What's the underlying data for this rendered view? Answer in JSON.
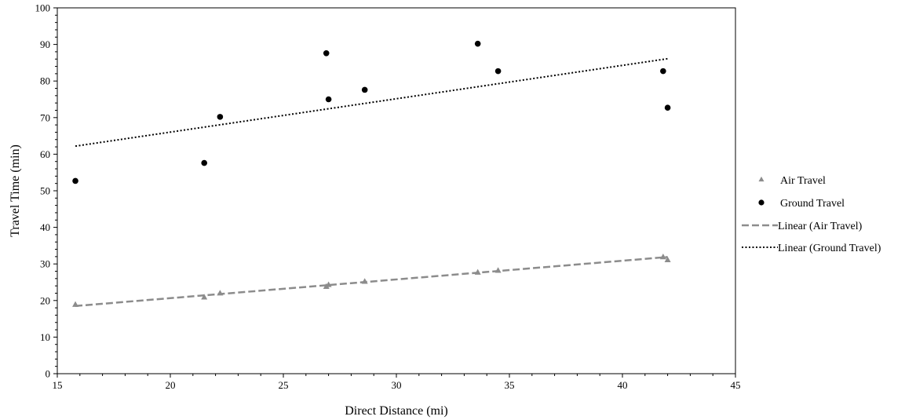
{
  "chart_data": {
    "type": "scatter",
    "title": "",
    "xlabel": "Direct Distance (mi)",
    "ylabel": "Travel Time (min)",
    "xlim": [
      15,
      45
    ],
    "ylim": [
      0,
      100
    ],
    "xticks": [
      15,
      20,
      25,
      30,
      35,
      40,
      45
    ],
    "yticks": [
      0,
      10,
      20,
      30,
      40,
      50,
      60,
      70,
      80,
      90,
      100
    ],
    "grid": false,
    "legend_position": "right",
    "series": [
      {
        "name": "Air Travel",
        "marker": "triangle",
        "color": "#8c8c8c",
        "x": [
          15.8,
          21.5,
          22.2,
          26.9,
          27.0,
          28.6,
          33.6,
          34.5,
          41.8,
          42.0
        ],
        "y": [
          18.8,
          20.8,
          21.9,
          23.7,
          24.2,
          25.1,
          27.6,
          28.1,
          31.8,
          31.0
        ]
      },
      {
        "name": "Ground Travel",
        "marker": "circle",
        "color": "#000000",
        "x": [
          15.8,
          21.5,
          22.2,
          26.9,
          27.0,
          28.6,
          33.6,
          34.5,
          41.8,
          42.0
        ],
        "y": [
          52.7,
          57.6,
          70.2,
          87.6,
          75.0,
          77.6,
          90.2,
          82.7,
          82.7,
          72.7
        ]
      }
    ],
    "trendlines": [
      {
        "name": "Linear (Air Travel)",
        "style": "dashed",
        "color": "#8c8c8c",
        "x": [
          15.8,
          42.0
        ],
        "y": [
          18.5,
          31.9
        ]
      },
      {
        "name": "Linear (Ground Travel)",
        "style": "dotted",
        "color": "#000000",
        "x": [
          15.8,
          42.0
        ],
        "y": [
          62.2,
          86.1
        ]
      }
    ]
  }
}
